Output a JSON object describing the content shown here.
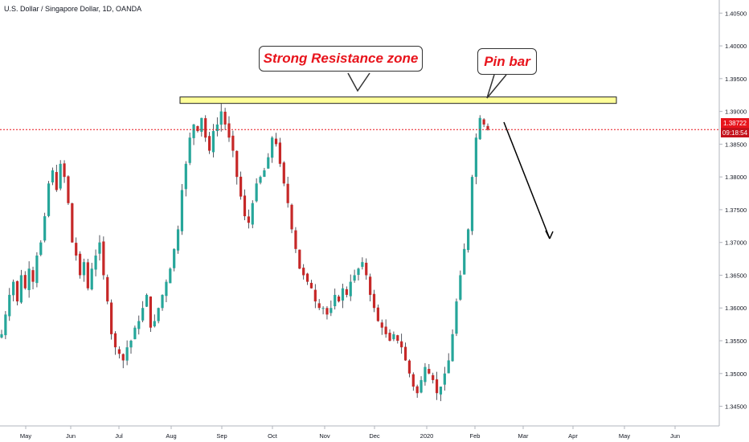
{
  "chart_title": "U.S. Dollar / Singapore Dollar, 1D, OANDA",
  "annotations": {
    "resistance_label": "Strong Resistance zone",
    "pinbar_label": "Pin bar"
  },
  "price_tag": {
    "price": "1.38722",
    "countdown": "09:18:54"
  },
  "colors": {
    "up": "#26a69a",
    "down": "#c62828",
    "wick": "#2a2e39",
    "zone_fill": "#ffff99",
    "zone_border": "#222222",
    "price_line": "#e8141c",
    "callout_text": "#e8141c"
  },
  "chart_data": {
    "type": "candlestick",
    "title": "U.S. Dollar / Singapore Dollar, 1D, OANDA",
    "y_axis": {
      "ticks": [
        "1.34500",
        "1.35000",
        "1.35500",
        "1.36000",
        "1.36500",
        "1.37000",
        "1.37500",
        "1.38000",
        "1.38500",
        "1.39000",
        "1.39500",
        "1.40000",
        "1.40500"
      ],
      "range": [
        1.342,
        1.407
      ]
    },
    "x_axis": {
      "ticks": [
        "May",
        "Jun",
        "Jul",
        "Aug",
        "Sep",
        "Oct",
        "Nov",
        "Dec",
        "2020",
        "Feb",
        "Mar",
        "Apr",
        "May",
        "Jun"
      ]
    },
    "current_price": 1.38722,
    "resistance_zone": {
      "low": 1.3913,
      "high": 1.3922,
      "from": "mid-Aug",
      "to": "late-Apr"
    },
    "projected_arrow": {
      "from_price": 1.3875,
      "to_price": 1.3695,
      "direction": "down"
    },
    "approx_closes": [
      1.356,
      1.359,
      1.362,
      1.364,
      1.361,
      1.365,
      1.363,
      1.366,
      1.364,
      1.368,
      1.37,
      1.374,
      1.379,
      1.381,
      1.378,
      1.382,
      1.38,
      1.376,
      1.37,
      1.368,
      1.365,
      1.367,
      1.363,
      1.366,
      1.368,
      1.37,
      1.365,
      1.361,
      1.356,
      1.354,
      1.353,
      1.352,
      1.354,
      1.355,
      1.357,
      1.358,
      1.36,
      1.362,
      1.357,
      1.358,
      1.36,
      1.362,
      1.364,
      1.366,
      1.369,
      1.372,
      1.378,
      1.382,
      1.386,
      1.388,
      1.387,
      1.389,
      1.386,
      1.384,
      1.387,
      1.388,
      1.39,
      1.388,
      1.386,
      1.384,
      1.38,
      1.377,
      1.374,
      1.373,
      1.376,
      1.379,
      1.38,
      1.381,
      1.383,
      1.386,
      1.385,
      1.382,
      1.379,
      1.376,
      1.372,
      1.369,
      1.366,
      1.365,
      1.364,
      1.363,
      1.361,
      1.36,
      1.36,
      1.359,
      1.36,
      1.362,
      1.361,
      1.363,
      1.362,
      1.364,
      1.365,
      1.366,
      1.367,
      1.365,
      1.362,
      1.36,
      1.358,
      1.357,
      1.356,
      1.355,
      1.356,
      1.355,
      1.354,
      1.352,
      1.35,
      1.348,
      1.347,
      1.349,
      1.351,
      1.35,
      1.349,
      1.347,
      1.348,
      1.35,
      1.352,
      1.356,
      1.361,
      1.365,
      1.369,
      1.372,
      1.38,
      1.386,
      1.389,
      1.388,
      1.3872
    ]
  }
}
